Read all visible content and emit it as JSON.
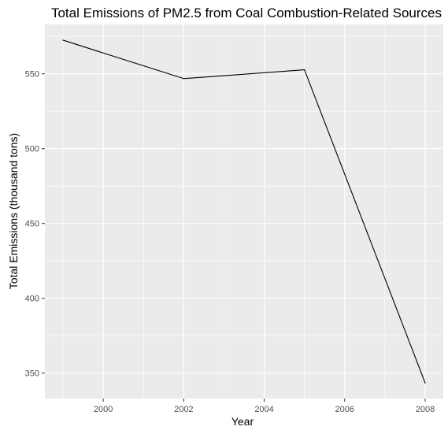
{
  "chart_data": {
    "type": "line",
    "title": "Total Emissions of PM2.5 from Coal Combustion-Related Sources",
    "xlabel": "Year",
    "ylabel": "Total Emissions (thousand tons)",
    "x": [
      1999,
      2002,
      2005,
      2008
    ],
    "series": [
      {
        "values": [
          572.5,
          546.8,
          552.7,
          343.4
        ]
      }
    ],
    "xlim": [
      1998.55,
      2008.45
    ],
    "ylim": [
      333,
      583
    ],
    "xticks": [
      2000,
      2002,
      2004,
      2006,
      2008
    ],
    "xtick_labels": [
      "2000",
      "2002",
      "2004",
      "2006",
      "2008"
    ],
    "yticks": [
      350,
      400,
      450,
      500,
      550
    ],
    "ytick_labels": [
      "350",
      "400",
      "450",
      "500",
      "550"
    ],
    "grid": true,
    "legend": "none",
    "colors": {
      "panel_background": "#ebebeb",
      "grid_major": "#ffffff",
      "line": "#000000",
      "tick_mark": "#333333"
    }
  }
}
